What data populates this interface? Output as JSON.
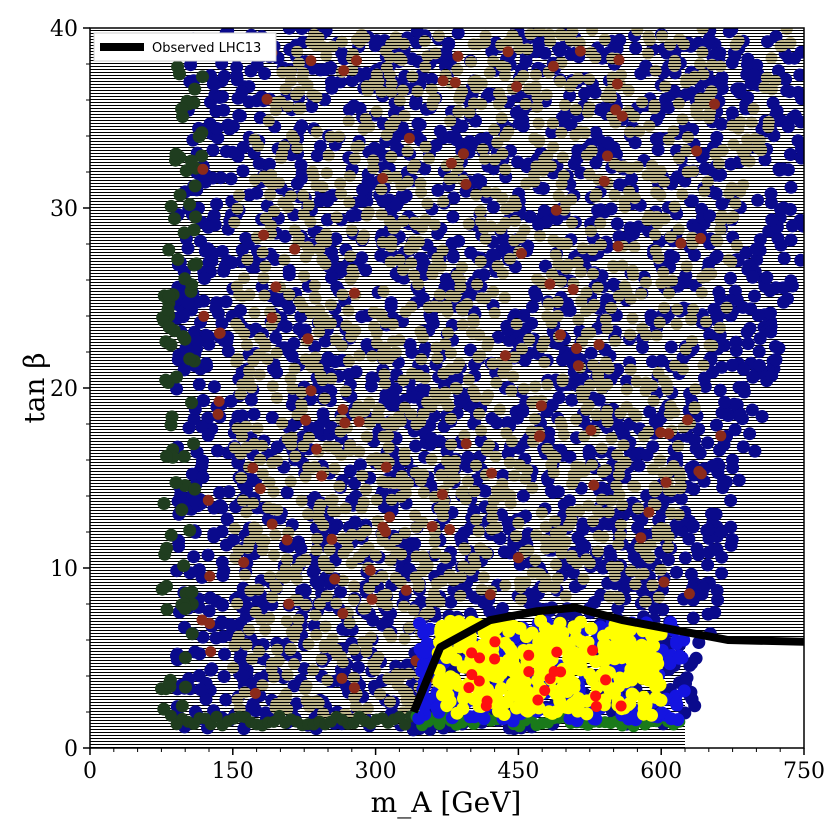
{
  "chart_data": {
    "type": "scatter",
    "xlabel": "m_A [GeV]",
    "ylabel": "tan β",
    "xlim": [
      0,
      750
    ],
    "ylim": [
      0,
      40
    ],
    "xticks": [
      0,
      150,
      300,
      450,
      600,
      750
    ],
    "yticks": [
      0,
      10,
      20,
      30,
      40
    ],
    "grid": false,
    "legend": {
      "placement": "top-left",
      "entries": [
        "Observed LHC13"
      ]
    },
    "observed_limit": {
      "name": "Observed LHC13",
      "color": "#000000",
      "x": [
        340,
        368,
        420,
        470,
        510,
        560,
        610,
        670,
        750
      ],
      "y": [
        2.0,
        5.6,
        7.1,
        7.6,
        7.8,
        7.1,
        6.6,
        6.0,
        5.9
      ]
    },
    "colors": {
      "hatched_background": "#000000",
      "dark_blue_points": "#0a0a8c",
      "tan_points": "#bdb489",
      "green_points": "#1a7a1a",
      "dark_green_points": "#1f3d1f",
      "blue_points": "#1414e0",
      "yellow_points": "#ffff00",
      "red_points": "#ff1010",
      "brown_points": "#8b2a1a"
    }
  }
}
